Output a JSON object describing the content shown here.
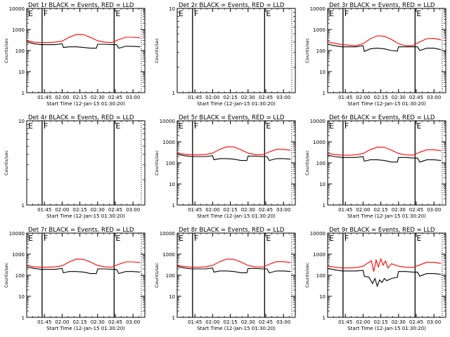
{
  "chart_data": [
    {
      "type": "line",
      "title": "Det 1r  BLACK = Events, RED = LLD",
      "xlabel": "Start Time (12-Jan-15 01:30:20)",
      "ylabel": "Counts/sec",
      "x_ticks": [
        "01:45",
        "02:00",
        "02:15",
        "02:30",
        "02:45",
        "03:00"
      ],
      "y_ticks": [
        "1",
        "10",
        "100",
        "1000",
        "10000"
      ],
      "ylim": [
        1,
        10000
      ],
      "log_y": true,
      "markers": [
        {
          "label": "E",
          "time": "01:35"
        },
        {
          "label": "F",
          "time": "01:43"
        },
        {
          "label": "E",
          "time": "02:44"
        }
      ],
      "dotted_line_time": "03:07",
      "series": [
        {
          "color": "#ff0000",
          "x": [
            "01:30",
            "01:36",
            "01:42",
            "01:48",
            "01:54",
            "02:00",
            "02:06",
            "02:12",
            "02:18",
            "02:24",
            "02:30",
            "02:36",
            "02:42",
            "02:48",
            "02:54",
            "03:00",
            "03:06"
          ],
          "values": [
            290,
            250,
            240,
            240,
            250,
            280,
            430,
            580,
            570,
            420,
            290,
            250,
            240,
            330,
            430,
            430,
            400
          ]
        },
        {
          "color": "#000000",
          "x": [
            "01:30",
            "01:36",
            "01:42",
            "01:48",
            "01:54",
            "02:00",
            "02:01",
            "02:06",
            "02:12",
            "02:18",
            "02:24",
            "02:29",
            "02:30",
            "02:36",
            "02:42",
            "02:46",
            "02:48",
            "02:54",
            "03:00",
            "03:06"
          ],
          "values": [
            260,
            210,
            190,
            190,
            190,
            210,
            140,
            150,
            150,
            140,
            130,
            130,
            200,
            200,
            190,
            190,
            130,
            160,
            160,
            150
          ]
        }
      ]
    },
    {
      "type": "line",
      "title": "Det 2r  BLACK = Events, RED = LLD",
      "xlabel": "Start Time (12-Jan-15 01:30:20)",
      "ylabel": "Counts/sec",
      "x_ticks": [
        "01:45",
        "02:00",
        "02:15",
        "02:30",
        "02:45",
        "03:00"
      ],
      "y_ticks": [
        "1",
        "10"
      ],
      "ylim": [
        1,
        10
      ],
      "log_y": true,
      "markers": [
        {
          "label": "E",
          "time": "01:35"
        },
        {
          "label": "F",
          "time": "01:43"
        },
        {
          "label": "E",
          "time": "02:44"
        }
      ],
      "dotted_line_time": "03:07",
      "series": []
    },
    {
      "type": "line",
      "title": "Det 3r  BLACK = Events, RED = LLD",
      "xlabel": "Start Time (12-Jan-15 01:30:20)",
      "ylabel": "Counts/sec",
      "x_ticks": [
        "01:45",
        "02:00",
        "02:15",
        "02:30",
        "02:45",
        "03:00"
      ],
      "y_ticks": [
        "1",
        "10",
        "100",
        "1000",
        "10000"
      ],
      "ylim": [
        1,
        10000
      ],
      "log_y": true,
      "markers": [
        {
          "label": "E",
          "time": "01:35"
        },
        {
          "label": "F",
          "time": "01:43"
        },
        {
          "label": "E",
          "time": "02:44"
        }
      ],
      "dotted_line_time": "03:07",
      "series": [
        {
          "color": "#ff0000",
          "x": [
            "01:30",
            "01:36",
            "01:42",
            "01:48",
            "01:54",
            "02:00",
            "02:06",
            "02:12",
            "02:18",
            "02:24",
            "02:30",
            "02:36",
            "02:42",
            "02:48",
            "02:54",
            "03:00",
            "03:06"
          ],
          "values": [
            260,
            220,
            190,
            180,
            170,
            210,
            360,
            500,
            480,
            340,
            210,
            170,
            170,
            260,
            370,
            380,
            320
          ]
        },
        {
          "color": "#000000",
          "x": [
            "01:30",
            "01:36",
            "01:42",
            "01:48",
            "01:54",
            "02:00",
            "02:01",
            "02:06",
            "02:12",
            "02:18",
            "02:24",
            "02:29",
            "02:30",
            "02:36",
            "02:42",
            "02:46",
            "02:48",
            "02:54",
            "03:00",
            "03:06"
          ],
          "values": [
            200,
            170,
            150,
            150,
            150,
            170,
            90,
            120,
            130,
            120,
            100,
            95,
            150,
            150,
            150,
            150,
            100,
            130,
            130,
            110
          ]
        }
      ]
    },
    {
      "type": "line",
      "title": "Det 4r  BLACK = Events, RED = LLD",
      "xlabel": "Start Time (12-Jan-15 01:30:20)",
      "ylabel": "Counts/sec",
      "x_ticks": [
        "01:45",
        "02:00",
        "02:15",
        "02:30",
        "02:45",
        "03:00"
      ],
      "y_ticks": [
        "1",
        "10"
      ],
      "ylim": [
        1,
        10
      ],
      "log_y": true,
      "markers": [
        {
          "label": "E",
          "time": "01:35"
        },
        {
          "label": "F",
          "time": "01:43"
        },
        {
          "label": "E",
          "time": "02:44"
        }
      ],
      "dotted_line_time": "03:07",
      "series": []
    },
    {
      "type": "line",
      "title": "Det 5r  BLACK = Events, RED = LLD",
      "xlabel": "Start Time (12-Jan-15 01:30:20)",
      "ylabel": "Counts/sec",
      "x_ticks": [
        "01:45",
        "02:00",
        "02:15",
        "02:30",
        "02:45",
        "03:00"
      ],
      "y_ticks": [
        "1",
        "10",
        "100",
        "1000",
        "10000"
      ],
      "ylim": [
        1,
        10000
      ],
      "log_y": true,
      "markers": [
        {
          "label": "E",
          "time": "01:35"
        },
        {
          "label": "F",
          "time": "01:43"
        },
        {
          "label": "E",
          "time": "02:44"
        }
      ],
      "dotted_line_time": "03:07",
      "series": [
        {
          "color": "#ff0000",
          "x": [
            "01:30",
            "01:36",
            "01:42",
            "01:48",
            "01:54",
            "02:00",
            "02:06",
            "02:12",
            "02:18",
            "02:24",
            "02:30",
            "02:36",
            "02:42",
            "02:48",
            "02:54",
            "03:00",
            "03:06"
          ],
          "values": [
            290,
            260,
            240,
            240,
            250,
            290,
            440,
            580,
            570,
            420,
            290,
            250,
            240,
            330,
            440,
            440,
            400
          ]
        },
        {
          "color": "#000000",
          "x": [
            "01:30",
            "01:36",
            "01:42",
            "01:48",
            "01:54",
            "02:00",
            "02:01",
            "02:06",
            "02:12",
            "02:18",
            "02:24",
            "02:29",
            "02:30",
            "02:36",
            "02:42",
            "02:46",
            "02:48",
            "02:54",
            "03:00",
            "03:06"
          ],
          "values": [
            260,
            220,
            200,
            200,
            200,
            220,
            140,
            160,
            160,
            150,
            130,
            130,
            210,
            210,
            200,
            200,
            130,
            160,
            160,
            150
          ]
        }
      ]
    },
    {
      "type": "line",
      "title": "Det 6r  BLACK = Events, RED = LLD",
      "xlabel": "Start Time (12-Jan-15 01:30:20)",
      "ylabel": "Counts/sec",
      "x_ticks": [
        "01:45",
        "02:00",
        "02:15",
        "02:30",
        "02:45",
        "03:00"
      ],
      "y_ticks": [
        "1",
        "10",
        "100",
        "1000",
        "10000"
      ],
      "ylim": [
        1,
        10000
      ],
      "log_y": true,
      "markers": [
        {
          "label": "E",
          "time": "01:35"
        },
        {
          "label": "F",
          "time": "01:43"
        },
        {
          "label": "E",
          "time": "02:44"
        }
      ],
      "dotted_line_time": "03:07",
      "series": [
        {
          "color": "#ff0000",
          "x": [
            "01:30",
            "01:36",
            "01:42",
            "01:48",
            "01:54",
            "02:00",
            "02:06",
            "02:12",
            "02:18",
            "02:24",
            "02:30",
            "02:36",
            "02:42",
            "02:48",
            "02:54",
            "03:00",
            "03:06"
          ],
          "values": [
            280,
            250,
            230,
            230,
            240,
            280,
            420,
            560,
            550,
            400,
            280,
            240,
            230,
            320,
            420,
            420,
            380
          ]
        },
        {
          "color": "#000000",
          "x": [
            "01:30",
            "01:36",
            "01:42",
            "01:48",
            "01:54",
            "02:00",
            "02:01",
            "02:06",
            "02:12",
            "02:18",
            "02:24",
            "02:29",
            "02:30",
            "02:36",
            "02:42",
            "02:46",
            "02:48",
            "02:54",
            "03:00",
            "03:06"
          ],
          "values": [
            230,
            200,
            180,
            180,
            180,
            200,
            120,
            140,
            140,
            130,
            110,
            110,
            180,
            180,
            170,
            170,
            110,
            140,
            140,
            130
          ]
        }
      ]
    },
    {
      "type": "line",
      "title": "Det 7r  BLACK = Events, RED = LLD",
      "xlabel": "Start Time (12-Jan-15 01:30:20)",
      "ylabel": "Counts/sec",
      "x_ticks": [
        "01:45",
        "02:00",
        "02:15",
        "02:30",
        "02:45",
        "03:00"
      ],
      "y_ticks": [
        "1",
        "10",
        "100",
        "1000",
        "10000"
      ],
      "ylim": [
        1,
        10000
      ],
      "log_y": true,
      "markers": [
        {
          "label": "E",
          "time": "01:35"
        },
        {
          "label": "F",
          "time": "01:43"
        },
        {
          "label": "E",
          "time": "02:44"
        }
      ],
      "dotted_line_time": "03:07",
      "series": [
        {
          "color": "#ff0000",
          "x": [
            "01:30",
            "01:36",
            "01:42",
            "01:48",
            "01:54",
            "02:00",
            "02:06",
            "02:12",
            "02:18",
            "02:24",
            "02:30",
            "02:36",
            "02:42",
            "02:48",
            "02:54",
            "03:00",
            "03:06"
          ],
          "values": [
            290,
            250,
            240,
            240,
            250,
            280,
            430,
            580,
            570,
            420,
            290,
            250,
            240,
            330,
            430,
            430,
            400
          ]
        },
        {
          "color": "#000000",
          "x": [
            "01:30",
            "01:36",
            "01:42",
            "01:48",
            "01:54",
            "02:00",
            "02:01",
            "02:06",
            "02:12",
            "02:18",
            "02:24",
            "02:29",
            "02:30",
            "02:36",
            "02:42",
            "02:46",
            "02:48",
            "02:54",
            "03:00",
            "03:06"
          ],
          "values": [
            250,
            210,
            190,
            190,
            190,
            210,
            130,
            150,
            150,
            140,
            120,
            120,
            200,
            200,
            190,
            190,
            120,
            150,
            150,
            140
          ]
        }
      ]
    },
    {
      "type": "line",
      "title": "Det 8r  BLACK = Events, RED = LLD",
      "xlabel": "Start Time (12-Jan-15 01:30:20)",
      "ylabel": "Counts/sec",
      "x_ticks": [
        "01:45",
        "02:00",
        "02:15",
        "02:30",
        "02:45",
        "03:00"
      ],
      "y_ticks": [
        "1",
        "10",
        "100",
        "1000",
        "10000"
      ],
      "ylim": [
        1,
        10000
      ],
      "log_y": true,
      "markers": [
        {
          "label": "E",
          "time": "01:35"
        },
        {
          "label": "F",
          "time": "01:43"
        },
        {
          "label": "E",
          "time": "02:44"
        }
      ],
      "dotted_line_time": "03:07",
      "series": [
        {
          "color": "#ff0000",
          "x": [
            "01:30",
            "01:36",
            "01:42",
            "01:48",
            "01:54",
            "02:00",
            "02:06",
            "02:12",
            "02:18",
            "02:24",
            "02:30",
            "02:36",
            "02:42",
            "02:48",
            "02:54",
            "03:00",
            "03:06"
          ],
          "values": [
            290,
            260,
            240,
            240,
            250,
            290,
            440,
            590,
            570,
            420,
            290,
            250,
            240,
            330,
            440,
            440,
            400
          ]
        },
        {
          "color": "#000000",
          "x": [
            "01:30",
            "01:36",
            "01:42",
            "01:48",
            "01:54",
            "02:00",
            "02:01",
            "02:06",
            "02:12",
            "02:18",
            "02:24",
            "02:29",
            "02:30",
            "02:36",
            "02:42",
            "02:46",
            "02:48",
            "02:54",
            "03:00",
            "03:06"
          ],
          "values": [
            260,
            220,
            200,
            200,
            200,
            220,
            140,
            160,
            160,
            150,
            130,
            130,
            210,
            210,
            200,
            200,
            130,
            160,
            160,
            150
          ]
        }
      ]
    },
    {
      "type": "line",
      "title": "Det 9r  BLACK = Events, RED = LLD",
      "xlabel": "Start Time (12-Jan-15 01:30:20)",
      "ylabel": "Counts/sec",
      "x_ticks": [
        "01:45",
        "02:00",
        "02:15",
        "02:30",
        "02:45",
        "03:00"
      ],
      "y_ticks": [
        "1",
        "10",
        "100",
        "1000",
        "10000"
      ],
      "ylim": [
        1,
        10000
      ],
      "log_y": true,
      "markers": [
        {
          "label": "E",
          "time": "01:35"
        },
        {
          "label": "F",
          "time": "01:43"
        },
        {
          "label": "E",
          "time": "02:44"
        }
      ],
      "dotted_line_time": "03:07",
      "series": [
        {
          "color": "#ff0000",
          "x": [
            "01:30",
            "01:36",
            "01:42",
            "01:48",
            "01:54",
            "02:00",
            "02:04",
            "02:07",
            "02:09",
            "02:11",
            "02:13",
            "02:15",
            "02:17",
            "02:19",
            "02:21",
            "02:24",
            "02:30",
            "02:36",
            "02:42",
            "02:48",
            "02:54",
            "03:00",
            "03:06"
          ],
          "values": [
            270,
            240,
            220,
            220,
            230,
            270,
            380,
            480,
            150,
            520,
            250,
            600,
            300,
            480,
            220,
            350,
            270,
            240,
            230,
            310,
            410,
            410,
            360
          ]
        },
        {
          "color": "#000000",
          "x": [
            "01:30",
            "01:36",
            "01:42",
            "01:48",
            "01:54",
            "02:00",
            "02:01",
            "02:05",
            "02:08",
            "02:10",
            "02:12",
            "02:14",
            "02:16",
            "02:18",
            "02:20",
            "02:24",
            "02:29",
            "02:30",
            "02:36",
            "02:42",
            "02:46",
            "02:48",
            "02:54",
            "03:00",
            "03:06"
          ],
          "values": [
            210,
            180,
            160,
            160,
            160,
            170,
            90,
            80,
            40,
            70,
            30,
            60,
            45,
            70,
            55,
            70,
            80,
            150,
            150,
            140,
            140,
            90,
            120,
            120,
            110
          ]
        }
      ]
    }
  ]
}
